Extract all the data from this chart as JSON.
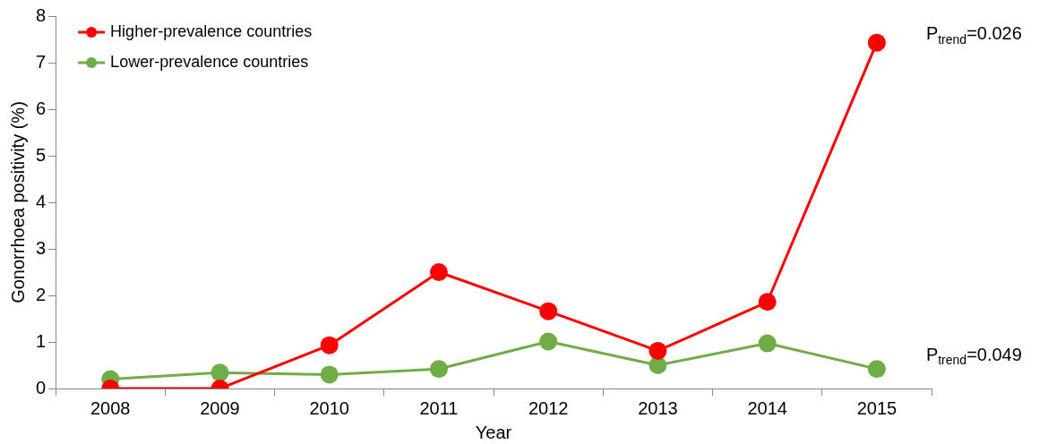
{
  "chart_data": {
    "type": "line",
    "xlabel": "Year",
    "ylabel": "Gonorrhoea positivity (%)",
    "categories": [
      "2008",
      "2009",
      "2010",
      "2011",
      "2012",
      "2013",
      "2014",
      "2015"
    ],
    "series": [
      {
        "name": "Higher-prevalence countries",
        "color": "#ff0000",
        "values": [
          0,
          0,
          0.93,
          2.5,
          1.66,
          0.81,
          1.86,
          7.43
        ]
      },
      {
        "name": "Lower-prevalence countries",
        "color": "#70ad47",
        "values": [
          0.2,
          0.34,
          0.3,
          0.42,
          1.01,
          0.5,
          0.97,
          0.42
        ]
      }
    ],
    "ylim": [
      0,
      8
    ],
    "yticks": [
      0,
      1,
      2,
      3,
      4,
      5,
      6,
      7,
      8
    ],
    "grid": false,
    "legend": "top left",
    "marker": "circle",
    "line_style": "solid",
    "annotations": [
      {
        "text": "P$_{trend}$=0.026",
        "x": "2015",
        "y": 7.6
      },
      {
        "text": "P$_{trend}$=0.049",
        "x": "2015",
        "y": 0.7
      }
    ]
  }
}
